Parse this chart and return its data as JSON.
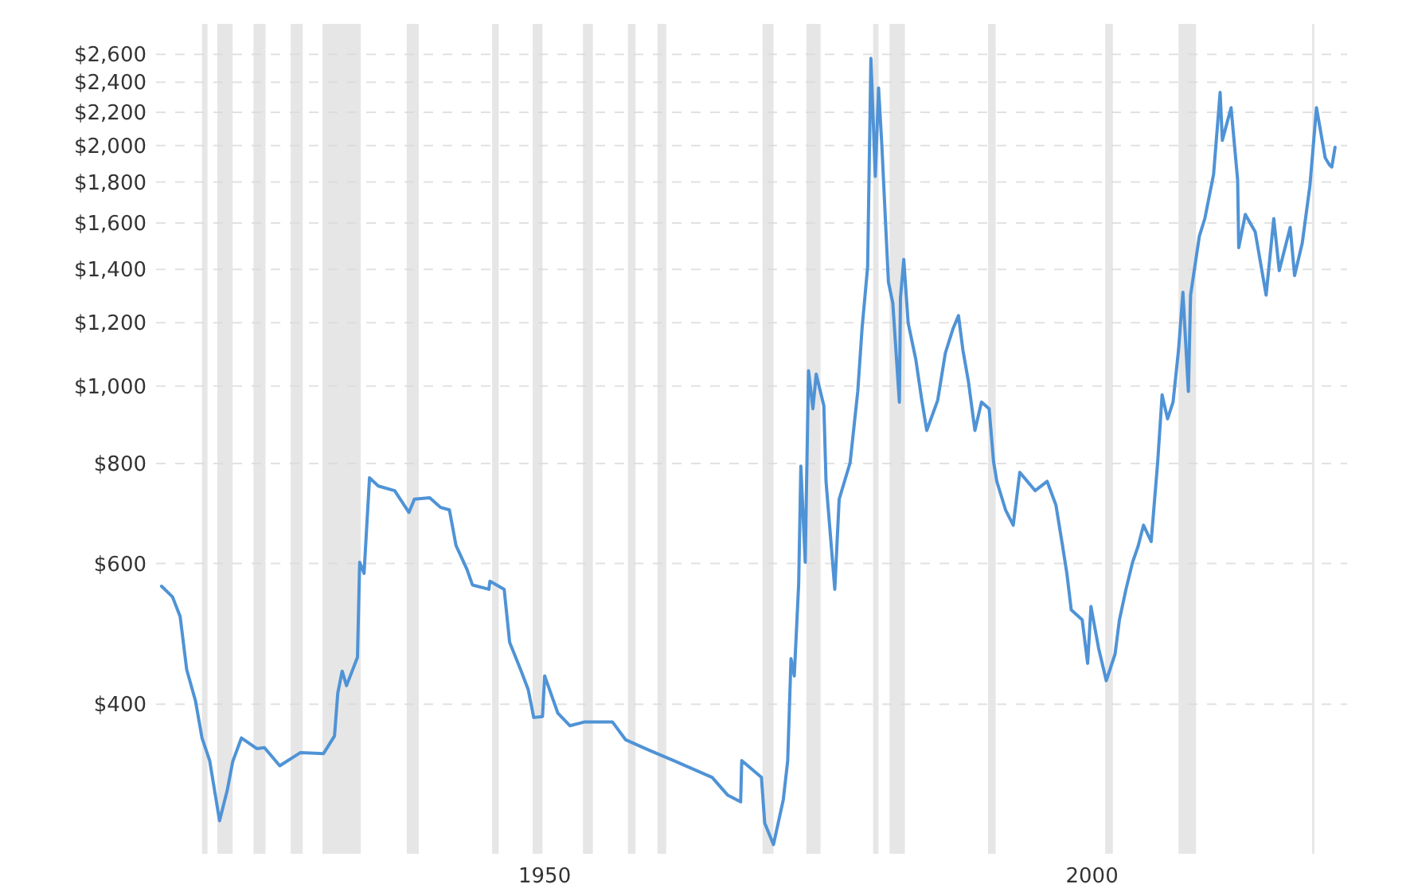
{
  "chart_data": {
    "type": "line",
    "x": [
      1915.0,
      1916.0,
      1916.7,
      1917.3,
      1918.1,
      1918.7,
      1919.4,
      1920.3,
      1921.0,
      1921.5,
      1922.3,
      1923.7,
      1924.4,
      1925.8,
      1927.7,
      1929.8,
      1930.8,
      1931.1,
      1931.5,
      1931.9,
      1932.9,
      1933.1,
      1933.5,
      1934.0,
      1934.8,
      1936.3,
      1937.6,
      1938.1,
      1939.5,
      1940.5,
      1941.3,
      1941.9,
      1942.9,
      1943.4,
      1944.9,
      1945.0,
      1946.3,
      1946.8,
      1947.8,
      1948.5,
      1949.0,
      1949.8,
      1950.0,
      1951.2,
      1952.3,
      1953.6,
      1956.2,
      1957.4,
      1959.4,
      1961.8,
      1965.3,
      1966.7,
      1967.9,
      1968.0,
      1969.8,
      1970.1,
      1970.9,
      1971.8,
      1972.2,
      1972.5,
      1972.8,
      1973.2,
      1973.4,
      1973.8,
      1974.1,
      1974.5,
      1974.8,
      1975.5,
      1975.7,
      1976.5,
      1976.9,
      1977.9,
      1978.6,
      1979.0,
      1979.5,
      1979.8,
      1980.2,
      1980.5,
      1980.8,
      1981.1,
      1981.4,
      1981.8,
      1982.4,
      1982.5,
      1982.8,
      1983.2,
      1983.9,
      1984.4,
      1984.9,
      1985.9,
      1986.6,
      1987.3,
      1987.8,
      1988.2,
      1988.7,
      1989.3,
      1989.9,
      1990.6,
      1991.0,
      1991.3,
      1992.1,
      1992.8,
      1993.4,
      1994.8,
      1995.9,
      1996.7,
      1997.3,
      1997.7,
      1998.1,
      1999.1,
      1999.6,
      1999.9,
      2000.6,
      2001.3,
      2002.1,
      2002.5,
      2003.1,
      2003.7,
      2004.2,
      2004.7,
      2005.4,
      2006.0,
      2006.4,
      2006.9,
      2007.4,
      2007.9,
      2008.3,
      2008.8,
      2009.0,
      2009.8,
      2010.3,
      2011.1,
      2011.7,
      2011.9,
      2012.7,
      2013.3,
      2013.4,
      2014.0,
      2014.9,
      2015.9,
      2016.6,
      2017.1,
      2018.1,
      2018.5,
      2019.2,
      2019.9,
      2020.5,
      2021.3,
      2021.7,
      2021.9,
      2022.2
    ],
    "series": [
      {
        "color": "#4f93d6",
        "values": [
          562,
          545,
          515,
          442,
          404,
          363,
          340,
          286,
          312,
          339,
          363,
          352,
          353,
          335,
          348,
          347,
          365,
          413,
          440,
          422,
          458,
          602,
          583,
          768,
          750,
          740,
          695,
          722,
          725,
          705,
          700,
          632,
          590,
          564,
          557,
          570,
          557,
          478,
          442,
          417,
          385,
          386,
          434,
          390,
          376,
          380,
          380,
          361,
          351,
          340,
          324,
          308,
          302,
          340,
          324,
          284,
          267,
          304,
          340,
          456,
          434,
          565,
          794,
          602,
          1045,
          937,
          1035,
          945,
          760,
          557,
          722,
          802,
          985,
          1185,
          1410,
          2570,
          1830,
          2360,
          2000,
          1640,
          1350,
          1270,
          955,
          1290,
          1440,
          1200,
          1080,
          970,
          880,
          960,
          1100,
          1180,
          1225,
          1110,
          1015,
          880,
          955,
          937,
          805,
          760,
          700,
          670,
          780,
          740,
          760,
          710,
          632,
          583,
          525,
          510,
          450,
          530,
          470,
          428,
          462,
          510,
          557,
          602,
          630,
          670,
          639,
          805,
          975,
          910,
          955,
          1110,
          1310,
          985,
          1300,
          1540,
          1620,
          1840,
          2330,
          2030,
          2230,
          1810,
          1490,
          1640,
          1560,
          1300,
          1620,
          1395,
          1580,
          1375,
          1510,
          1780,
          2230,
          1930,
          1890,
          1880,
          1990
        ]
      }
    ],
    "log": "y",
    "xlim": [
      1914.5,
      2023.3
    ],
    "ylim": [
      260,
      2800
    ],
    "xticks": [
      1950,
      2000
    ],
    "yticks": [
      {
        "value": 400,
        "label": "$400"
      },
      {
        "value": 600,
        "label": "$600"
      },
      {
        "value": 800,
        "label": "$800"
      },
      {
        "value": 1000,
        "label": "$1,000"
      },
      {
        "value": 1200,
        "label": "$1,200"
      },
      {
        "value": 1400,
        "label": "$1,400"
      },
      {
        "value": 1600,
        "label": "$1,600"
      },
      {
        "value": 1800,
        "label": "$1,800"
      },
      {
        "value": 2000,
        "label": "$2,000"
      },
      {
        "value": 2200,
        "label": "$2,200"
      },
      {
        "value": 2400,
        "label": "$2,400"
      },
      {
        "value": 2600,
        "label": "$2,600"
      }
    ],
    "grid": "y",
    "line_style": "solid",
    "bands": [
      {
        "axis": "x",
        "from": 1918.7,
        "to": 1919.2,
        "color": "#e6e6e6"
      },
      {
        "axis": "x",
        "from": 1920.1,
        "to": 1921.5,
        "color": "#e6e6e6"
      },
      {
        "axis": "x",
        "from": 1923.4,
        "to": 1924.5,
        "color": "#e6e6e6"
      },
      {
        "axis": "x",
        "from": 1926.8,
        "to": 1927.9,
        "color": "#e6e6e6"
      },
      {
        "axis": "x",
        "from": 1929.7,
        "to": 1933.2,
        "color": "#e6e6e6"
      },
      {
        "axis": "x",
        "from": 1937.4,
        "to": 1938.5,
        "color": "#e6e6e6"
      },
      {
        "axis": "x",
        "from": 1945.2,
        "to": 1945.8,
        "color": "#e6e6e6"
      },
      {
        "axis": "x",
        "from": 1948.9,
        "to": 1949.8,
        "color": "#e6e6e6"
      },
      {
        "axis": "x",
        "from": 1953.5,
        "to": 1954.4,
        "color": "#e6e6e6"
      },
      {
        "axis": "x",
        "from": 1957.6,
        "to": 1958.3,
        "color": "#e6e6e6"
      },
      {
        "axis": "x",
        "from": 1960.3,
        "to": 1961.1,
        "color": "#e6e6e6"
      },
      {
        "axis": "x",
        "from": 1969.9,
        "to": 1970.9,
        "color": "#e6e6e6"
      },
      {
        "axis": "x",
        "from": 1973.9,
        "to": 1975.2,
        "color": "#e6e6e6"
      },
      {
        "axis": "x",
        "from": 1980.0,
        "to": 1980.5,
        "color": "#e6e6e6"
      },
      {
        "axis": "x",
        "from": 1981.5,
        "to": 1982.9,
        "color": "#e6e6e6"
      },
      {
        "axis": "x",
        "from": 1990.5,
        "to": 1991.2,
        "color": "#e6e6e6"
      },
      {
        "axis": "x",
        "from": 2001.2,
        "to": 2001.9,
        "color": "#e6e6e6"
      },
      {
        "axis": "x",
        "from": 2007.9,
        "to": 2009.5,
        "color": "#e6e6e6"
      },
      {
        "axis": "x",
        "from": 2020.1,
        "to": 2020.3,
        "color": "#e6e6e6"
      }
    ]
  }
}
